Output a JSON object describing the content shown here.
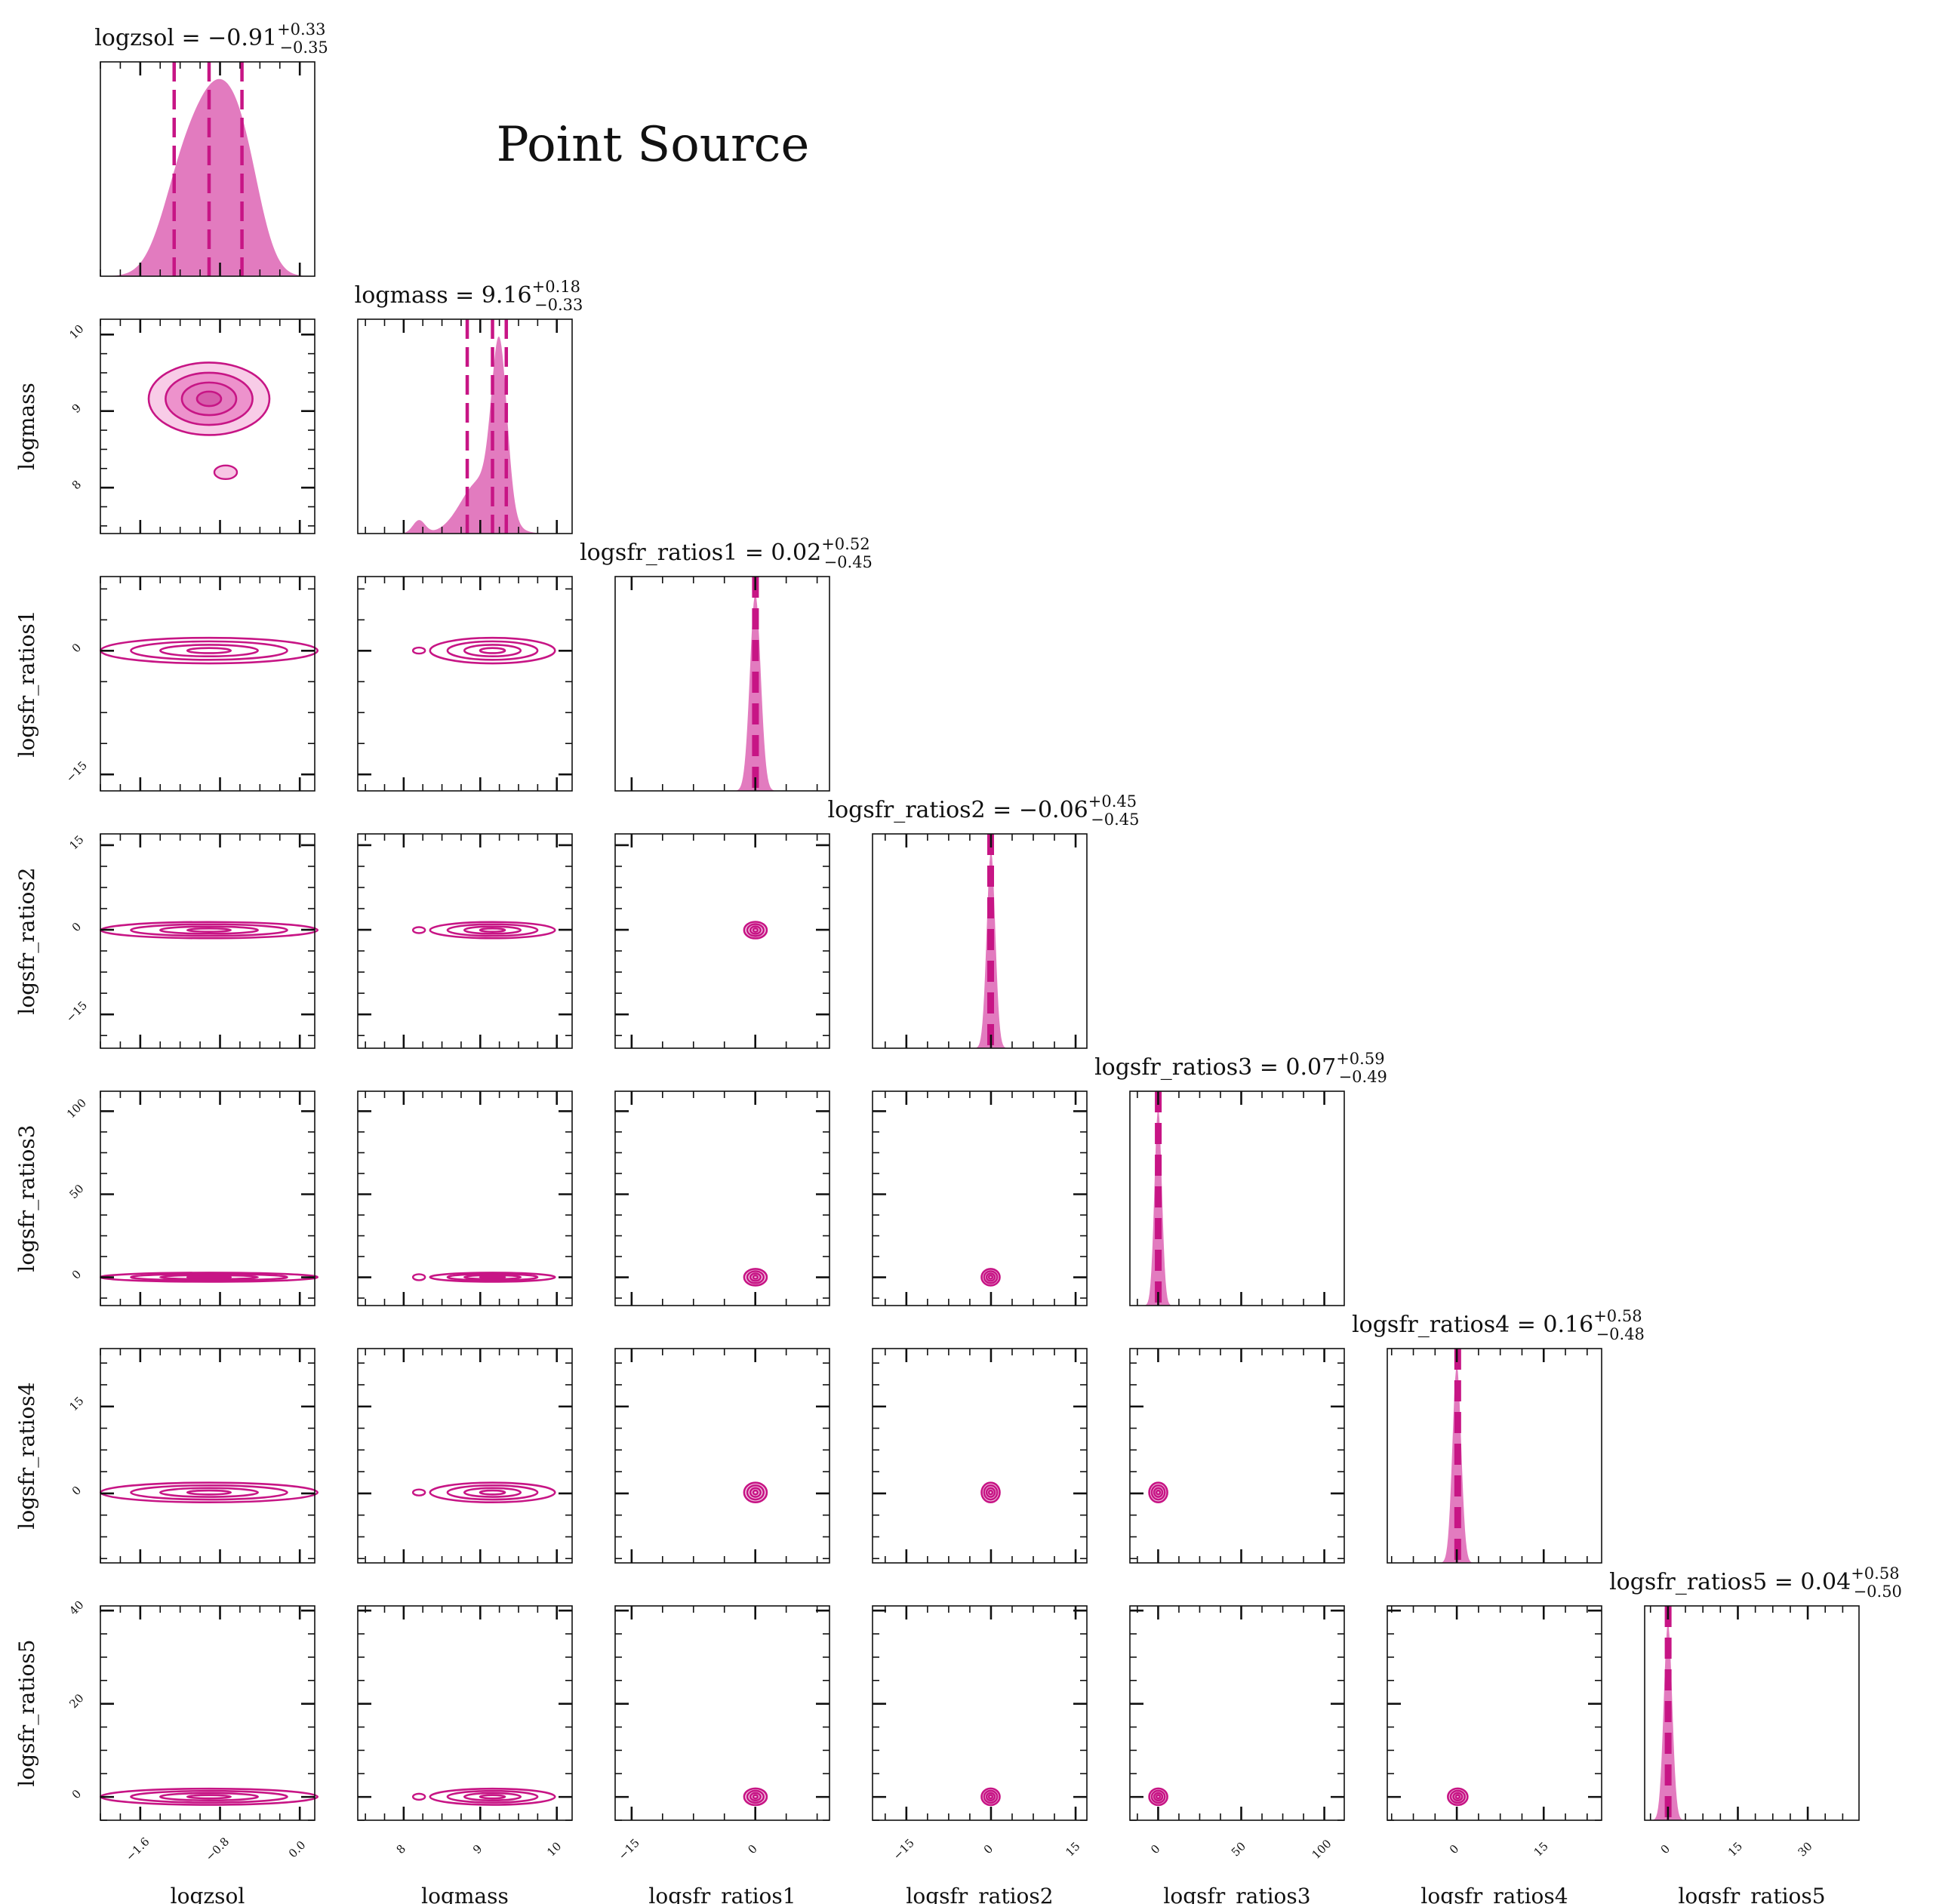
{
  "figure_title": "Point Source",
  "colors": {
    "accent": "#c71585",
    "fill": "#e27bbf",
    "fill_light": "#f7c6e4",
    "fill_mid": "#eb8cc9",
    "fill_dark": "#d45aa8",
    "frame": "#111111"
  },
  "chart_data": {
    "type": "corner",
    "title": "Point Source",
    "parameters": [
      {
        "name": "logzsol",
        "xlabel": "logzsol",
        "ylabel": "logzsol",
        "median": -0.91,
        "plus": 0.33,
        "minus": 0.35,
        "title_main": "logzsol = −0.91",
        "title_plus": "+0.33",
        "title_minus": "−0.35",
        "range": [
          -2.0,
          0.15
        ],
        "ticks": [
          -1.6,
          -0.8,
          0.0
        ],
        "tick_labels": [
          "−1.6",
          "−0.8",
          "0.0"
        ],
        "hist_peaks": [
          [
            -1.15,
            0.22,
            0.8
          ],
          [
            -0.82,
            0.2,
            1.0
          ],
          [
            -0.55,
            0.18,
            0.7
          ]
        ],
        "marginal_style": "smooth"
      },
      {
        "name": "logmass",
        "xlabel": "logmass",
        "ylabel": "logmass",
        "median": 9.16,
        "plus": 0.18,
        "minus": 0.33,
        "title_main": "logmass = 9.16",
        "title_plus": "+0.18",
        "title_minus": "−0.33",
        "range": [
          7.4,
          10.2
        ],
        "ticks": [
          8,
          9,
          10
        ],
        "tick_labels": [
          "8",
          "9",
          "10"
        ],
        "hist_peaks": [
          [
            9.25,
            0.1,
            1.0
          ],
          [
            9.0,
            0.25,
            0.32
          ],
          [
            8.2,
            0.08,
            0.08
          ]
        ],
        "marginal_style": "smooth"
      },
      {
        "name": "logsfr_ratios1",
        "xlabel": "logsfr_ratios1",
        "ylabel": "logsfr_ratios1",
        "median": 0.02,
        "plus": 0.52,
        "minus": 0.45,
        "title_main": "logsfr_ratios1 = 0.02",
        "title_plus": "+0.52",
        "title_minus": "−0.45",
        "range": [
          -17,
          9
        ],
        "ticks": [
          -15,
          0
        ],
        "tick_labels": [
          "−15",
          "0"
        ],
        "hist_peaks": [
          [
            0.0,
            0.65,
            1.0
          ]
        ],
        "marginal_style": "spike"
      },
      {
        "name": "logsfr_ratios2",
        "xlabel": "logsfr_ratios2",
        "ylabel": "logsfr_ratios2",
        "median": -0.06,
        "plus": 0.45,
        "minus": 0.45,
        "title_main": "logsfr_ratios2 = −0.06",
        "title_plus": "+0.45",
        "title_minus": "−0.45",
        "range": [
          -21,
          17
        ],
        "ticks": [
          -15,
          0,
          15
        ],
        "tick_labels": [
          "−15",
          "0",
          "15"
        ],
        "hist_peaks": [
          [
            0.0,
            0.75,
            1.0
          ]
        ],
        "marginal_style": "spike"
      },
      {
        "name": "logsfr_ratios3",
        "xlabel": "logsfr_ratios3",
        "ylabel": "logsfr_ratios3",
        "median": 0.07,
        "plus": 0.59,
        "minus": 0.49,
        "title_main": "logsfr_ratios3 = 0.07",
        "title_plus": "+0.59",
        "title_minus": "−0.49",
        "range": [
          -17,
          112
        ],
        "ticks": [
          0,
          50,
          100
        ],
        "tick_labels": [
          "0",
          "50",
          "100"
        ],
        "hist_peaks": [
          [
            0.0,
            2.2,
            1.0
          ]
        ],
        "marginal_style": "spike"
      },
      {
        "name": "logsfr_ratios4",
        "xlabel": "logsfr_ratios4",
        "ylabel": "logsfr_ratios4",
        "median": 0.16,
        "plus": 0.58,
        "minus": 0.48,
        "title_main": "logsfr_ratios4 = 0.16",
        "title_plus": "+0.58",
        "title_minus": "−0.48",
        "range": [
          -12,
          25
        ],
        "ticks": [
          0,
          15
        ],
        "tick_labels": [
          "0",
          "15"
        ],
        "hist_peaks": [
          [
            0.0,
            0.75,
            1.0
          ]
        ],
        "marginal_style": "spike"
      },
      {
        "name": "logsfr_ratios5",
        "xlabel": "logsfr_ratios5",
        "ylabel": "logsfr_ratios5",
        "median": 0.04,
        "plus": 0.58,
        "minus": 0.5,
        "title_main": "logsfr_ratios5 = 0.04",
        "title_plus": "+0.58",
        "title_minus": "−0.50",
        "range": [
          -5,
          41
        ],
        "ticks": [
          0,
          15,
          30
        ],
        "y_ticks": [
          0,
          20,
          40
        ],
        "tick_labels": [
          "0",
          "15",
          "30"
        ],
        "y_tick_labels": [
          "0",
          "20",
          "40"
        ],
        "hist_peaks": [
          [
            0.0,
            0.9,
            1.0
          ]
        ],
        "marginal_style": "spike"
      }
    ],
    "secondary_modes": {
      "logmass": 8.2
    },
    "quantiles": [
      0.16,
      0.5,
      0.84
    ]
  }
}
